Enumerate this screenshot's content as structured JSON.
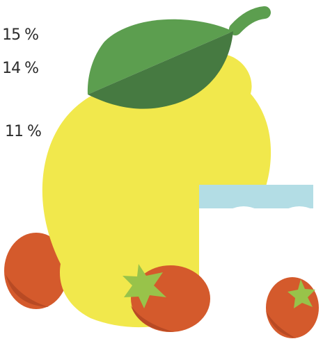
{
  "labels": [
    {
      "text": "15 %"
    },
    {
      "text": "14 %"
    },
    {
      "text": "11 %"
    }
  ],
  "colors": {
    "lemon": "#f1e84c",
    "leaf_light": "#5c9e4f",
    "leaf_dark": "#467a41",
    "tomato": "#d45a2c",
    "tomato_shadow": "#b84a24",
    "stem": "#98c34a",
    "glass_water": "#b3dde5",
    "text": "#2b2b2b"
  },
  "icons": [
    "lemon-icon",
    "leaf-icon",
    "tomato-icon",
    "glass-icon"
  ]
}
